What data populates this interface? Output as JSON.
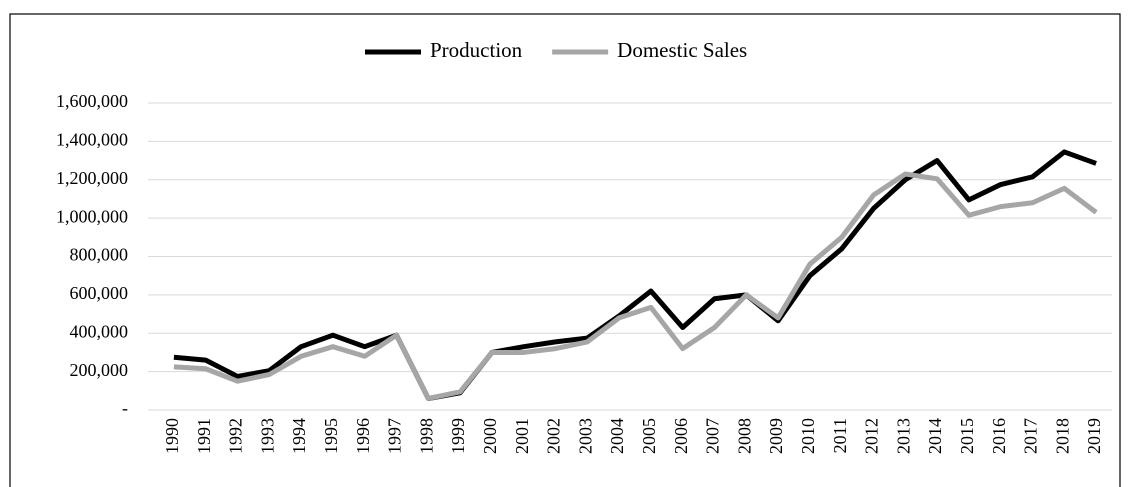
{
  "chart_data": {
    "type": "line",
    "categories": [
      "1990",
      "1991",
      "1992",
      "1993",
      "1994",
      "1995",
      "1996",
      "1997",
      "1998",
      "1999",
      "2000",
      "2001",
      "2002",
      "2003",
      "2004",
      "2005",
      "2006",
      "2007",
      "2008",
      "2009",
      "2010",
      "2011",
      "2012",
      "2013",
      "2014",
      "2015",
      "2016",
      "2017",
      "2018",
      "2019"
    ],
    "series": [
      {
        "name": "Production",
        "color": "#000000",
        "values": [
          275000,
          260000,
          175000,
          205000,
          330000,
          390000,
          330000,
          390000,
          60000,
          90000,
          300000,
          330000,
          355000,
          375000,
          490000,
          620000,
          430000,
          580000,
          600000,
          465000,
          700000,
          840000,
          1050000,
          1200000,
          1300000,
          1095000,
          1175000,
          1215000,
          1345000,
          1285000
        ]
      },
      {
        "name": "Domestic Sales",
        "color": "#a6a6a6",
        "values": [
          225000,
          215000,
          150000,
          185000,
          280000,
          330000,
          280000,
          390000,
          60000,
          95000,
          300000,
          300000,
          320000,
          355000,
          480000,
          535000,
          320000,
          430000,
          600000,
          480000,
          760000,
          900000,
          1120000,
          1230000,
          1205000,
          1015000,
          1060000,
          1080000,
          1155000,
          1030000
        ]
      }
    ],
    "ylim": [
      0,
      1600000
    ],
    "yticks": [
      {
        "value": 0,
        "label": "-"
      },
      {
        "value": 200000,
        "label": "200,000"
      },
      {
        "value": 400000,
        "label": "400,000"
      },
      {
        "value": 600000,
        "label": "600,000"
      },
      {
        "value": 800000,
        "label": "800,000"
      },
      {
        "value": 1000000,
        "label": "1,000,000"
      },
      {
        "value": 1200000,
        "label": "1,200,000"
      },
      {
        "value": 1400000,
        "label": "1,400,000"
      },
      {
        "value": 1600000,
        "label": "1,600,000"
      }
    ],
    "grid": true,
    "legend": "top"
  }
}
